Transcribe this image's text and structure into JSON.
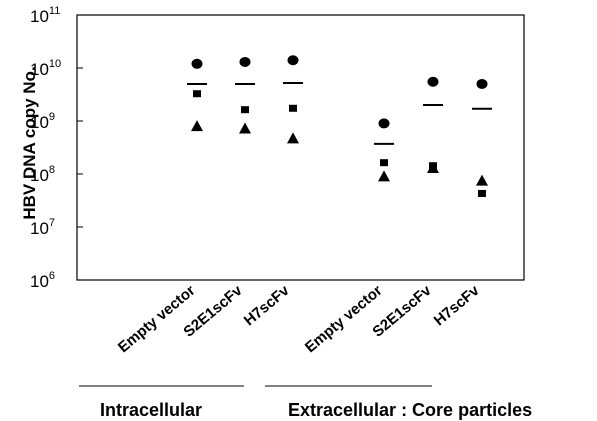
{
  "chart_data": {
    "type": "scatter",
    "ylabel": "HBV DNA copy No.",
    "yscale": "log",
    "ylim": [
      1000000,
      100000000000
    ],
    "y_ticks": [
      {
        "base": "10",
        "exp": "6"
      },
      {
        "base": "10",
        "exp": "7"
      },
      {
        "base": "10",
        "exp": "8"
      },
      {
        "base": "10",
        "exp": "9"
      },
      {
        "base": "10",
        "exp": "10"
      },
      {
        "base": "10",
        "exp": "11"
      }
    ],
    "grid": false,
    "categories": [
      "Empty vector",
      "S2E1scFv",
      "H7scFv",
      "Empty vector",
      "S2E1scFv",
      "H7scFv"
    ],
    "groups": [
      {
        "label": "Intracellular",
        "category_indices": [
          0,
          1,
          2
        ]
      },
      {
        "label": "Extracellular : Core particles",
        "category_indices": [
          3,
          4,
          5
        ]
      }
    ],
    "series": [
      {
        "marker": "circle",
        "values": [
          12000000000,
          13000000000,
          14000000000,
          900000000,
          5500000000,
          5000000000
        ]
      },
      {
        "marker": "square",
        "values": [
          3200000000,
          1600000000,
          1700000000,
          160000000,
          140000000,
          42000000
        ]
      },
      {
        "marker": "triangle",
        "values": [
          800000000,
          720000000,
          470000000,
          90000000,
          130000000,
          75000000
        ]
      },
      {
        "marker": "dash",
        "values": [
          5000000000,
          5000000000,
          5200000000,
          370000000,
          2000000000,
          1700000000
        ]
      }
    ],
    "colors": {
      "marks": "#000000",
      "axis": "#000000"
    }
  }
}
